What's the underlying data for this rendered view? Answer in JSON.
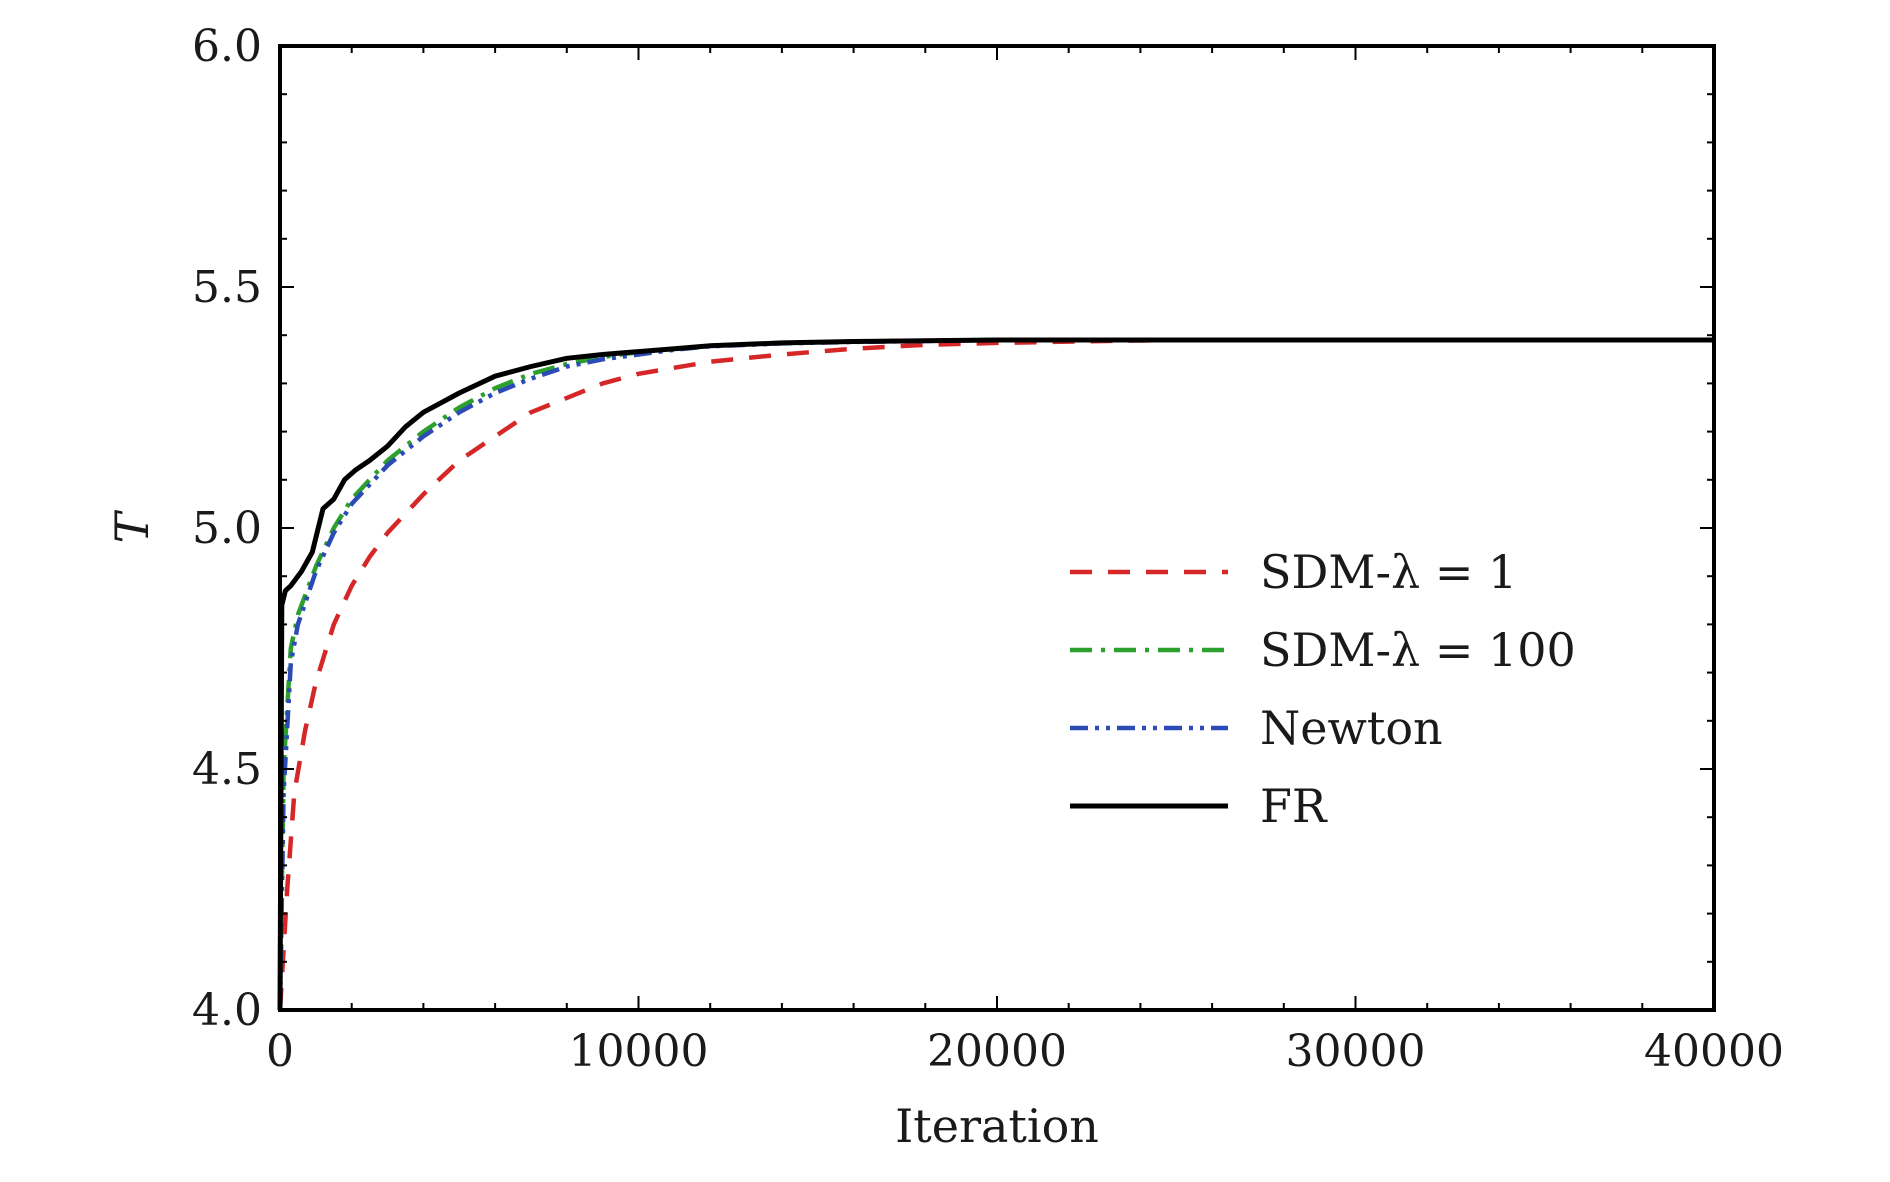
{
  "chart_data": {
    "type": "line",
    "xlabel": "Iteration",
    "ylabel": "T",
    "xlim": [
      0,
      40000
    ],
    "ylim": [
      4.0,
      6.0
    ],
    "x_ticks": [
      0,
      10000,
      20000,
      30000,
      40000
    ],
    "x_tick_labels": [
      "0",
      "10000",
      "20000",
      "30000",
      "40000"
    ],
    "y_ticks": [
      4.0,
      4.5,
      5.0,
      5.5,
      6.0
    ],
    "y_tick_labels": [
      "4.0",
      "4.5",
      "5.0",
      "5.5",
      "6.0"
    ],
    "grid": false,
    "legend_position": "center-right",
    "series": [
      {
        "name": "SDM-λ = 1",
        "color": "#d62728",
        "dash": "dashed",
        "x": [
          0,
          200,
          400,
          700,
          1000,
          1500,
          2000,
          2500,
          3000,
          4000,
          5000,
          6000,
          7000,
          8000,
          9000,
          10000,
          12000,
          14000,
          16000,
          18000,
          20000,
          23000,
          25000,
          30000,
          35000,
          40000
        ],
        "y": [
          4.0,
          4.25,
          4.45,
          4.58,
          4.68,
          4.8,
          4.88,
          4.94,
          4.99,
          5.07,
          5.14,
          5.19,
          5.24,
          5.27,
          5.3,
          5.32,
          5.345,
          5.36,
          5.372,
          5.38,
          5.384,
          5.388,
          5.39,
          5.39,
          5.39,
          5.39
        ]
      },
      {
        "name": "SDM-λ = 100",
        "color": "#2ca02c",
        "dash": "dashdot",
        "x": [
          0,
          100,
          300,
          500,
          1000,
          1500,
          2000,
          2500,
          3000,
          4000,
          5000,
          6000,
          7000,
          8000,
          9000,
          10000,
          11000,
          12000,
          14000,
          16000,
          20000,
          25000,
          30000,
          35000,
          40000
        ],
        "y": [
          4.0,
          4.5,
          4.75,
          4.82,
          4.92,
          5.0,
          5.06,
          5.1,
          5.14,
          5.2,
          5.25,
          5.29,
          5.32,
          5.34,
          5.355,
          5.365,
          5.372,
          5.378,
          5.384,
          5.387,
          5.39,
          5.39,
          5.39,
          5.39,
          5.39
        ]
      },
      {
        "name": "Newton",
        "color": "#2b4bb5",
        "dash": "dashdotdot",
        "x": [
          0,
          100,
          300,
          500,
          1000,
          1500,
          2000,
          2500,
          3000,
          4000,
          5000,
          6000,
          7000,
          8000,
          9000,
          10000,
          11000,
          12000,
          14000,
          16000,
          20000,
          25000,
          30000,
          35000,
          40000
        ],
        "y": [
          4.0,
          4.45,
          4.72,
          4.8,
          4.91,
          4.99,
          5.05,
          5.09,
          5.13,
          5.19,
          5.24,
          5.28,
          5.31,
          5.335,
          5.35,
          5.36,
          5.37,
          5.377,
          5.383,
          5.386,
          5.39,
          5.39,
          5.39,
          5.39,
          5.39
        ]
      },
      {
        "name": "FR",
        "color": "#000000",
        "dash": "solid",
        "x": [
          0,
          50,
          150,
          300,
          600,
          900,
          1200,
          1500,
          1800,
          2100,
          2500,
          3000,
          3500,
          4000,
          5000,
          6000,
          7000,
          8000,
          9000,
          10000,
          11000,
          12000,
          14000,
          16000,
          20000,
          25000,
          30000,
          35000,
          40000
        ],
        "y": [
          4.0,
          4.84,
          4.87,
          4.88,
          4.91,
          4.95,
          5.04,
          5.06,
          5.1,
          5.12,
          5.14,
          5.17,
          5.21,
          5.24,
          5.28,
          5.315,
          5.335,
          5.352,
          5.36,
          5.366,
          5.372,
          5.378,
          5.384,
          5.387,
          5.39,
          5.39,
          5.39,
          5.39,
          5.39
        ]
      }
    ]
  }
}
